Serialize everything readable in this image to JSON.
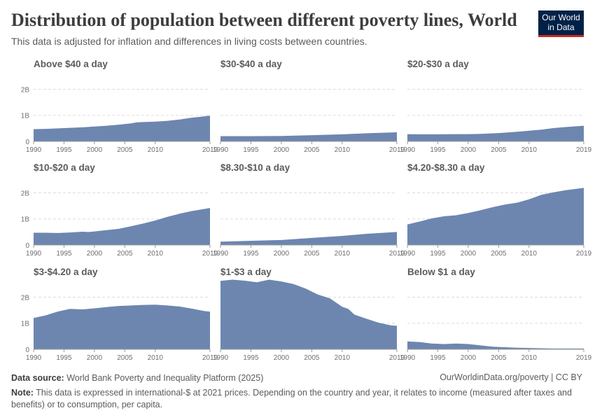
{
  "header": {
    "title": "Distribution of population between different poverty lines, World",
    "subtitle": "This data is adjusted for inflation and differences in living costs between countries."
  },
  "logo": {
    "line1": "Our World",
    "line2": "in Data"
  },
  "footer": {
    "source_label": "Data source:",
    "source": "World Bank Poverty and Inequality Platform (2025)",
    "link": "OurWorldinData.org/poverty | CC BY",
    "note_label": "Note:",
    "note": "This data is expressed in international-$ at 2021 prices. Depending on the country and year, it relates to income (measured after taxes and benefits) or to consumption, per capita."
  },
  "colors": {
    "area": "#6d86b0",
    "grid": "#dddddd",
    "axis": "#6f6f6f"
  },
  "chart_data": [
    {
      "type": "area",
      "title": "Above $40 a day",
      "ylim": [
        0,
        2200000000.0
      ],
      "yticks": [
        "0",
        "1B",
        "2B"
      ],
      "xticks": [
        "1990",
        "1995",
        "2000",
        "2005",
        "2010",
        "2019"
      ],
      "x": [
        1990,
        1992,
        1994,
        1996,
        1998,
        2000,
        2002,
        2004,
        2006,
        2007,
        2008,
        2010,
        2012,
        2014,
        2016,
        2018,
        2019
      ],
      "values": [
        470000000.0,
        480000000.0,
        500000000.0,
        520000000.0,
        540000000.0,
        570000000.0,
        600000000.0,
        640000000.0,
        690000000.0,
        730000000.0,
        740000000.0,
        760000000.0,
        790000000.0,
        840000000.0,
        910000000.0,
        960000000.0,
        990000000.0
      ]
    },
    {
      "type": "area",
      "title": "$30-$40 a day",
      "ylim": [
        0,
        2200000000.0
      ],
      "yticks": [
        "0",
        "1B",
        "2B"
      ],
      "xticks": [
        "1990",
        "1995",
        "2000",
        "2005",
        "2010",
        "2019"
      ],
      "x": [
        1990,
        1995,
        2000,
        2005,
        2010,
        2014,
        2019
      ],
      "values": [
        200000000.0,
        200000000.0,
        210000000.0,
        240000000.0,
        270000000.0,
        310000000.0,
        350000000.0
      ]
    },
    {
      "type": "area",
      "title": "$20-$30 a day",
      "ylim": [
        0,
        2200000000.0
      ],
      "yticks": [
        "0",
        "1B",
        "2B"
      ],
      "xticks": [
        "1990",
        "1995",
        "2000",
        "2005",
        "2010",
        "2019"
      ],
      "x": [
        1990,
        1992,
        1995,
        1998,
        2000,
        2002,
        2005,
        2008,
        2010,
        2012,
        2014,
        2016,
        2019
      ],
      "values": [
        280000000.0,
        270000000.0,
        270000000.0,
        280000000.0,
        280000000.0,
        290000000.0,
        320000000.0,
        370000000.0,
        410000000.0,
        450000000.0,
        510000000.0,
        550000000.0,
        600000000.0
      ]
    },
    {
      "type": "area",
      "title": "$10-$20 a day",
      "ylim": [
        0,
        2200000000.0
      ],
      "yticks": [
        "0",
        "1B",
        "2B"
      ],
      "xticks": [
        "1990",
        "1995",
        "2000",
        "2005",
        "2010",
        "2019"
      ],
      "x": [
        1990,
        1992,
        1994,
        1996,
        1998,
        1999,
        2000,
        2002,
        2004,
        2006,
        2008,
        2010,
        2012,
        2014,
        2016,
        2018,
        2019
      ],
      "values": [
        470000000.0,
        470000000.0,
        460000000.0,
        480000000.0,
        510000000.0,
        500000000.0,
        520000000.0,
        570000000.0,
        620000000.0,
        720000000.0,
        820000000.0,
        940000000.0,
        1080000000.0,
        1200000000.0,
        1300000000.0,
        1380000000.0,
        1420000000.0
      ]
    },
    {
      "type": "area",
      "title": "$8.30-$10 a day",
      "ylim": [
        0,
        2200000000.0
      ],
      "yticks": [
        "0",
        "1B",
        "2B"
      ],
      "xticks": [
        "1990",
        "1995",
        "2000",
        "2005",
        "2010",
        "2019"
      ],
      "x": [
        1990,
        1995,
        2000,
        2005,
        2010,
        2014,
        2019
      ],
      "values": [
        130000000.0,
        160000000.0,
        190000000.0,
        270000000.0,
        350000000.0,
        430000000.0,
        500000000.0
      ]
    },
    {
      "type": "area",
      "title": "$4.20-$8.30 a day",
      "ylim": [
        0,
        2200000000.0
      ],
      "yticks": [
        "0",
        "1B",
        "2B"
      ],
      "xticks": [
        "1990",
        "1995",
        "2000",
        "2005",
        "2010",
        "2019"
      ],
      "x": [
        1990,
        1992,
        1994,
        1996,
        1998,
        2000,
        2002,
        2004,
        2006,
        2008,
        2010,
        2012,
        2014,
        2016,
        2018,
        2019
      ],
      "values": [
        790000000.0,
        900000000.0,
        1020000000.0,
        1100000000.0,
        1140000000.0,
        1230000000.0,
        1330000000.0,
        1450000000.0,
        1550000000.0,
        1620000000.0,
        1750000000.0,
        1920000000.0,
        2020000000.0,
        2100000000.0,
        2160000000.0,
        2190000000.0
      ]
    },
    {
      "type": "area",
      "title": "$3-$4.20 a day",
      "ylim": [
        0,
        2200000000.0
      ],
      "yticks": [
        "0",
        "1B",
        "2B"
      ],
      "xticks": [
        "1990",
        "1995",
        "2000",
        "2005",
        "2010",
        "2019"
      ],
      "x": [
        1990,
        1992,
        1994,
        1996,
        1998,
        2000,
        2002,
        2004,
        2006,
        2008,
        2010,
        2012,
        2014,
        2016,
        2018,
        2019
      ],
      "values": [
        1200000000.0,
        1300000000.0,
        1450000000.0,
        1550000000.0,
        1530000000.0,
        1570000000.0,
        1620000000.0,
        1660000000.0,
        1680000000.0,
        1700000000.0,
        1710000000.0,
        1680000000.0,
        1640000000.0,
        1560000000.0,
        1470000000.0,
        1440000000.0
      ]
    },
    {
      "type": "area",
      "title": "$1-$3 a day",
      "ylim": [
        0,
        2200000000.0
      ],
      "yticks": [
        "0",
        "1B",
        "2B"
      ],
      "xticks": [
        "1990",
        "1995",
        "2000",
        "2005",
        "2010",
        "2019"
      ],
      "x": [
        1990,
        1992,
        1994,
        1996,
        1998,
        2000,
        2002,
        2004,
        2006,
        2008,
        2010,
        2011,
        2012,
        2014,
        2016,
        2018,
        2019
      ],
      "values": [
        2620000000.0,
        2670000000.0,
        2630000000.0,
        2570000000.0,
        2670000000.0,
        2600000000.0,
        2500000000.0,
        2330000000.0,
        2100000000.0,
        1950000000.0,
        1630000000.0,
        1550000000.0,
        1330000000.0,
        1170000000.0,
        1020000000.0,
        920000000.0,
        900000000.0
      ]
    },
    {
      "type": "area",
      "title": "Below $1 a day",
      "ylim": [
        0,
        2200000000.0
      ],
      "yticks": [
        "0",
        "1B",
        "2B"
      ],
      "xticks": [
        "1990",
        "1995",
        "2000",
        "2005",
        "2010",
        "2019"
      ],
      "x": [
        1990,
        1992,
        1994,
        1996,
        1998,
        2000,
        2002,
        2004,
        2006,
        2008,
        2010,
        2012,
        2014,
        2016,
        2018,
        2019
      ],
      "values": [
        300000000.0,
        280000000.0,
        220000000.0,
        200000000.0,
        220000000.0,
        200000000.0,
        150000000.0,
        100000000.0,
        80000000.0,
        60000000.0,
        50000000.0,
        40000000.0,
        30000000.0,
        30000000.0,
        30000000.0,
        30000000.0
      ]
    }
  ]
}
